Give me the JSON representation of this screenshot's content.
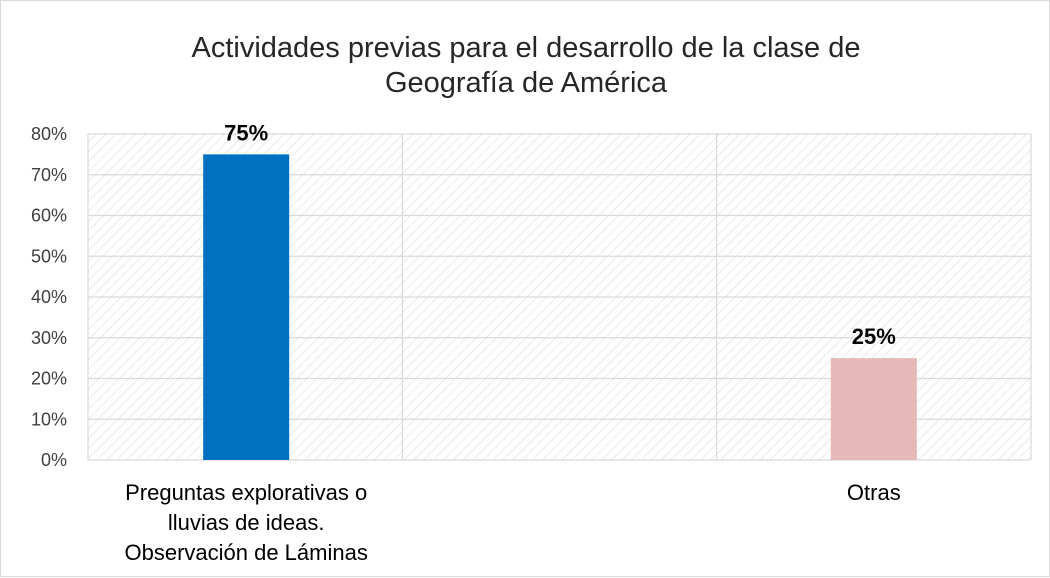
{
  "chart_data": {
    "type": "bar",
    "title": [
      "Actividades previas para el desarrollo de la clase de",
      "Geografía de América"
    ],
    "categories": [
      [
        "Preguntas explorativas o",
        "lluvias de ideas.",
        "Observación de Láminas"
      ],
      [
        "Otras"
      ]
    ],
    "values": [
      75,
      25
    ],
    "data_labels": [
      "75%",
      "25%"
    ],
    "bar_colors": [
      "#0070c0",
      "#e6b8b7"
    ],
    "ylim": [
      0,
      80
    ],
    "yticks": [
      0,
      10,
      20,
      30,
      40,
      50,
      60,
      70,
      80
    ],
    "ytick_labels": [
      "0%",
      "10%",
      "20%",
      "30%",
      "40%",
      "50%",
      "60%",
      "70%",
      "80%"
    ],
    "grid": true,
    "plot_background": "hatched"
  }
}
